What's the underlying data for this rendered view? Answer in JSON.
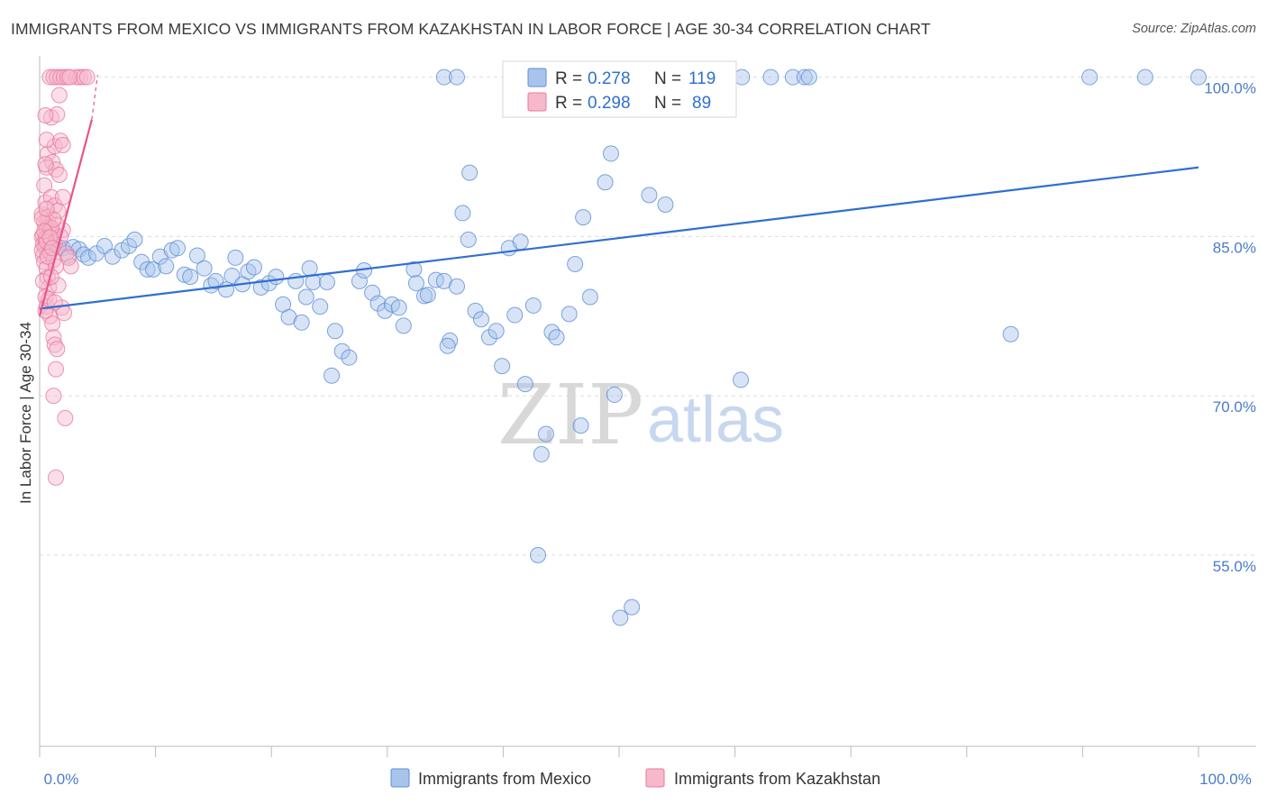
{
  "title": "IMMIGRANTS FROM MEXICO VS IMMIGRANTS FROM KAZAKHSTAN IN LABOR FORCE | AGE 30-34 CORRELATION CHART",
  "source": "Source: ZipAtlas.com",
  "watermark": {
    "zip": "ZIP",
    "atlas": "atlas"
  },
  "legend_top": {
    "rows": [
      {
        "r_label": "R =",
        "r_value": "0.278",
        "n_label": "N =",
        "n_value": "119",
        "color": "#a9c4ec",
        "stroke": "#5b8fd6"
      },
      {
        "r_label": "R =",
        "r_value": "0.298",
        "n_label": "N =",
        "n_value": "89",
        "color": "#f7b8cc",
        "stroke": "#e8799c"
      }
    ]
  },
  "legend_bottom": [
    {
      "label": "Immigrants from Mexico",
      "color": "#a9c4ec",
      "stroke": "#5b8fd6"
    },
    {
      "label": "Immigrants from Kazakhstan",
      "color": "#f7b8cc",
      "stroke": "#e8799c"
    }
  ],
  "chart_data": {
    "type": "scatter",
    "title": "IMMIGRANTS FROM MEXICO VS IMMIGRANTS FROM KAZAKHSTAN IN LABOR FORCE | AGE 30-34 CORRELATION CHART",
    "xlabel": "",
    "ylabel": "In Labor Force | Age 30-34",
    "xlim": [
      0,
      100
    ],
    "ylim": [
      37,
      102
    ],
    "x_tick_labels": [
      "0.0%",
      "100.0%"
    ],
    "x_tick_values": [
      0,
      100
    ],
    "y_tick_labels": [
      "55.0%",
      "70.0%",
      "85.0%",
      "100.0%"
    ],
    "y_tick_values": [
      55,
      70,
      85,
      100
    ],
    "grid": "horizontal dashed",
    "legend_position": "top-center",
    "series": [
      {
        "name": "Immigrants from Mexico",
        "color": "#5b8fd6",
        "fill": "#a9c4ec",
        "trend": {
          "x": [
            0,
            100
          ],
          "y": [
            78.2,
            91.5
          ]
        },
        "points": [
          [
            0.5,
            84.2
          ],
          [
            0.8,
            83.6
          ],
          [
            1.2,
            84.4
          ],
          [
            1.6,
            84.0
          ],
          [
            2.0,
            83.9
          ],
          [
            2.5,
            83.2
          ],
          [
            2.9,
            84.0
          ],
          [
            3.4,
            83.8
          ],
          [
            3.8,
            83.3
          ],
          [
            4.2,
            83.0
          ],
          [
            4.9,
            83.4
          ],
          [
            5.6,
            84.1
          ],
          [
            6.3,
            83.1
          ],
          [
            7.1,
            83.7
          ],
          [
            7.7,
            84.1
          ],
          [
            8.2,
            84.7
          ],
          [
            8.8,
            82.6
          ],
          [
            9.3,
            81.9
          ],
          [
            9.8,
            81.9
          ],
          [
            10.4,
            83.1
          ],
          [
            10.9,
            82.2
          ],
          [
            11.4,
            83.7
          ],
          [
            11.9,
            83.9
          ],
          [
            12.5,
            81.4
          ],
          [
            13.0,
            81.2
          ],
          [
            13.6,
            83.2
          ],
          [
            14.2,
            82.0
          ],
          [
            14.8,
            80.4
          ],
          [
            15.2,
            80.8
          ],
          [
            16.1,
            80.0
          ],
          [
            16.6,
            81.3
          ],
          [
            16.9,
            83.0
          ],
          [
            17.5,
            80.5
          ],
          [
            18.0,
            81.7
          ],
          [
            18.5,
            82.1
          ],
          [
            19.1,
            80.2
          ],
          [
            19.8,
            80.6
          ],
          [
            20.4,
            81.2
          ],
          [
            21.0,
            78.6
          ],
          [
            21.5,
            77.4
          ],
          [
            22.1,
            80.8
          ],
          [
            22.6,
            76.9
          ],
          [
            23.0,
            79.3
          ],
          [
            23.6,
            80.7
          ],
          [
            24.2,
            78.4
          ],
          [
            24.8,
            80.7
          ],
          [
            25.5,
            76.1
          ],
          [
            26.1,
            74.2
          ],
          [
            26.7,
            73.6
          ],
          [
            25.2,
            71.9
          ],
          [
            27.6,
            80.8
          ],
          [
            28.0,
            81.8
          ],
          [
            28.7,
            79.7
          ],
          [
            29.2,
            78.7
          ],
          [
            29.8,
            78.0
          ],
          [
            30.4,
            78.6
          ],
          [
            31.0,
            78.3
          ],
          [
            31.4,
            76.6
          ],
          [
            32.3,
            81.9
          ],
          [
            32.5,
            80.6
          ],
          [
            33.2,
            79.4
          ],
          [
            33.5,
            79.5
          ],
          [
            34.2,
            80.9
          ],
          [
            34.9,
            80.8
          ],
          [
            35.4,
            75.2
          ],
          [
            36.0,
            80.3
          ],
          [
            35.2,
            74.7
          ],
          [
            36.5,
            87.2
          ],
          [
            37.0,
            84.7
          ],
          [
            37.6,
            78.0
          ],
          [
            38.1,
            77.2
          ],
          [
            38.8,
            75.5
          ],
          [
            39.4,
            76.1
          ],
          [
            39.9,
            72.8
          ],
          [
            40.5,
            83.9
          ],
          [
            41.0,
            77.6
          ],
          [
            41.5,
            84.5
          ],
          [
            41.9,
            71.1
          ],
          [
            41.8,
            100.0
          ],
          [
            42.6,
            78.5
          ],
          [
            43.3,
            64.5
          ],
          [
            43.7,
            66.4
          ],
          [
            44.2,
            76.0
          ],
          [
            44.6,
            75.5
          ],
          [
            45.7,
            77.7
          ],
          [
            46.2,
            82.4
          ],
          [
            46.7,
            67.2
          ],
          [
            47.5,
            79.3
          ],
          [
            47.9,
            100.0
          ],
          [
            48.8,
            90.1
          ],
          [
            49.3,
            92.8
          ],
          [
            49.6,
            70.1
          ],
          [
            50.1,
            49.1
          ],
          [
            51.1,
            50.1
          ],
          [
            51.6,
            100.0
          ],
          [
            52.6,
            88.9
          ],
          [
            54.0,
            88.0
          ],
          [
            55.0,
            100.0
          ],
          [
            59.0,
            100.0
          ],
          [
            60.5,
            71.5
          ],
          [
            60.6,
            100.0
          ],
          [
            63.1,
            100.0
          ],
          [
            65.0,
            100.0
          ],
          [
            66.0,
            100.0
          ],
          [
            66.4,
            100.0
          ],
          [
            83.8,
            75.8
          ],
          [
            90.6,
            100.0
          ],
          [
            95.4,
            100.0
          ],
          [
            100.0,
            100.0
          ],
          [
            44.4,
            100.0
          ],
          [
            41.2,
            100.0
          ],
          [
            46.0,
            100.0
          ],
          [
            34.9,
            100.0
          ],
          [
            36.0,
            100.0
          ],
          [
            23.3,
            82.0
          ],
          [
            37.1,
            91.0
          ],
          [
            46.9,
            86.8
          ],
          [
            43.0,
            55.0
          ],
          [
            58.0,
            100.0
          ]
        ]
      },
      {
        "name": "Immigrants from Kazakhstan",
        "color": "#e8799c",
        "fill": "#f7b8cc",
        "trend": {
          "x": [
            0,
            4.5
          ],
          "y": [
            77.5,
            96.0
          ]
        },
        "points": [
          [
            0.3,
            85.1
          ],
          [
            0.4,
            84.0
          ],
          [
            0.6,
            85.7
          ],
          [
            0.7,
            86.4
          ],
          [
            0.2,
            87.1
          ],
          [
            0.5,
            88.2
          ],
          [
            0.8,
            86.9
          ],
          [
            0.9,
            85.3
          ],
          [
            1.0,
            84.6
          ],
          [
            0.3,
            83.2
          ],
          [
            0.4,
            82.6
          ],
          [
            0.6,
            82.0
          ],
          [
            0.7,
            81.1
          ],
          [
            0.8,
            80.2
          ],
          [
            0.5,
            79.3
          ],
          [
            0.6,
            78.4
          ],
          [
            0.9,
            77.5
          ],
          [
            1.1,
            76.8
          ],
          [
            1.2,
            75.5
          ],
          [
            1.3,
            74.8
          ],
          [
            1.5,
            74.4
          ],
          [
            1.4,
            72.5
          ],
          [
            1.2,
            70.0
          ],
          [
            2.2,
            67.9
          ],
          [
            1.4,
            62.3
          ],
          [
            0.4,
            89.8
          ],
          [
            0.6,
            91.5
          ],
          [
            0.7,
            92.8
          ],
          [
            1.1,
            92.0
          ],
          [
            1.3,
            93.5
          ],
          [
            0.6,
            94.1
          ],
          [
            1.8,
            94.0
          ],
          [
            2.0,
            93.6
          ],
          [
            1.0,
            96.2
          ],
          [
            1.5,
            96.5
          ],
          [
            0.5,
            96.4
          ],
          [
            1.7,
            98.3
          ],
          [
            0.9,
            100.0
          ],
          [
            1.2,
            100.0
          ],
          [
            1.5,
            100.0
          ],
          [
            1.8,
            100.0
          ],
          [
            2.1,
            100.0
          ],
          [
            3.2,
            100.0
          ],
          [
            3.5,
            100.0
          ],
          [
            3.8,
            100.0
          ],
          [
            4.1,
            100.0
          ],
          [
            2.4,
            100.0
          ],
          [
            2.6,
            100.0
          ],
          [
            1.0,
            88.7
          ],
          [
            1.3,
            87.9
          ],
          [
            1.6,
            87.4
          ],
          [
            2.0,
            85.6
          ],
          [
            0.2,
            85.0
          ],
          [
            0.3,
            84.3
          ],
          [
            0.5,
            84.8
          ],
          [
            0.8,
            85.9
          ],
          [
            1.1,
            85.4
          ],
          [
            1.3,
            84.2
          ],
          [
            1.5,
            86.1
          ],
          [
            1.8,
            85.0
          ],
          [
            2.3,
            83.4
          ],
          [
            2.7,
            82.2
          ],
          [
            0.2,
            83.7
          ],
          [
            0.4,
            86.3
          ],
          [
            0.6,
            84.5
          ],
          [
            0.9,
            83.5
          ],
          [
            1.2,
            82.8
          ],
          [
            1.4,
            82.2
          ],
          [
            1.6,
            80.4
          ],
          [
            1.9,
            78.3
          ],
          [
            2.1,
            77.8
          ],
          [
            0.3,
            80.8
          ],
          [
            0.5,
            78.0
          ],
          [
            0.8,
            79.1
          ],
          [
            1.0,
            85.8
          ],
          [
            1.2,
            86.6
          ],
          [
            1.4,
            91.3
          ],
          [
            1.7,
            90.8
          ],
          [
            2.0,
            88.7
          ],
          [
            0.2,
            86.7
          ],
          [
            0.4,
            85.5
          ],
          [
            0.6,
            87.6
          ],
          [
            0.7,
            83.1
          ],
          [
            1.0,
            81.2
          ],
          [
            1.3,
            78.8
          ],
          [
            0.9,
            84.9
          ],
          [
            2.5,
            83.0
          ],
          [
            1.1,
            83.9
          ],
          [
            0.5,
            91.8
          ]
        ]
      }
    ]
  }
}
